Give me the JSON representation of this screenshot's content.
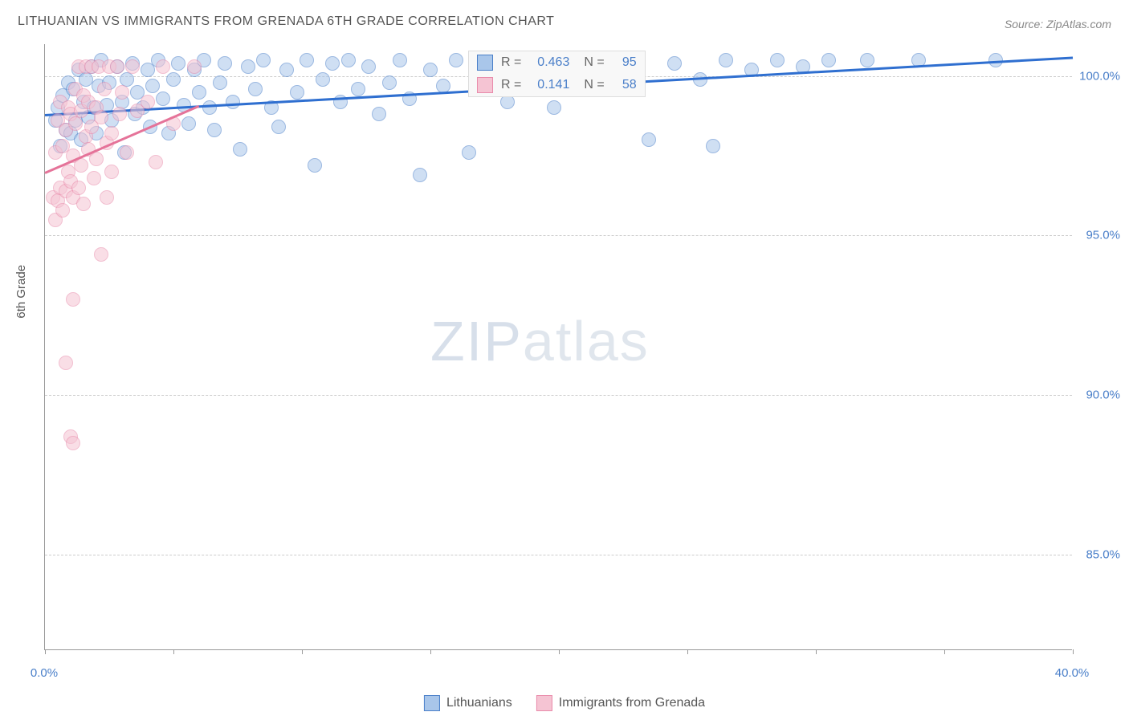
{
  "title": "LITHUANIAN VS IMMIGRANTS FROM GRENADA 6TH GRADE CORRELATION CHART",
  "source": "Source: ZipAtlas.com",
  "watermark": {
    "bold": "ZIP",
    "light": "atlas"
  },
  "ylabel": "6th Grade",
  "chart": {
    "type": "scatter",
    "background_color": "#ffffff",
    "grid_color": "#cccccc",
    "xlim": [
      0,
      40
    ],
    "ylim": [
      82,
      101
    ],
    "xticks": [
      0,
      5,
      10,
      15,
      20,
      25,
      30,
      35,
      40
    ],
    "xtick_labels": {
      "0": "0.0%",
      "40": "40.0%"
    },
    "yticks": [
      85,
      90,
      95,
      100
    ],
    "ytick_labels": [
      "85.0%",
      "90.0%",
      "95.0%",
      "100.0%"
    ],
    "marker_radius": 9,
    "marker_opacity": 0.55,
    "series": [
      {
        "name": "Lithuanians",
        "fill": "#a9c6ea",
        "stroke": "#4a7fc9",
        "trend_color": "#2f6fd0",
        "R": "0.463",
        "N": "95",
        "trend": {
          "x1": 0,
          "y1": 98.8,
          "x2": 40,
          "y2": 100.6
        },
        "points": [
          [
            0.4,
            98.6
          ],
          [
            0.5,
            99.0
          ],
          [
            0.6,
            97.8
          ],
          [
            0.7,
            99.4
          ],
          [
            0.8,
            98.3
          ],
          [
            0.9,
            99.8
          ],
          [
            1.0,
            98.2
          ],
          [
            1.1,
            99.6
          ],
          [
            1.2,
            98.6
          ],
          [
            1.3,
            100.2
          ],
          [
            1.4,
            98.0
          ],
          [
            1.5,
            99.2
          ],
          [
            1.6,
            99.9
          ],
          [
            1.7,
            98.7
          ],
          [
            1.8,
            100.3
          ],
          [
            1.9,
            99.0
          ],
          [
            2.0,
            98.2
          ],
          [
            2.1,
            99.7
          ],
          [
            2.2,
            100.5
          ],
          [
            2.4,
            99.1
          ],
          [
            2.5,
            99.8
          ],
          [
            2.6,
            98.6
          ],
          [
            2.8,
            100.3
          ],
          [
            3.0,
            99.2
          ],
          [
            3.1,
            97.6
          ],
          [
            3.2,
            99.9
          ],
          [
            3.4,
            100.4
          ],
          [
            3.5,
            98.8
          ],
          [
            3.6,
            99.5
          ],
          [
            3.8,
            99.0
          ],
          [
            4.0,
            100.2
          ],
          [
            4.1,
            98.4
          ],
          [
            4.2,
            99.7
          ],
          [
            4.4,
            100.5
          ],
          [
            4.6,
            99.3
          ],
          [
            4.8,
            98.2
          ],
          [
            5.0,
            99.9
          ],
          [
            5.2,
            100.4
          ],
          [
            5.4,
            99.1
          ],
          [
            5.6,
            98.5
          ],
          [
            5.8,
            100.2
          ],
          [
            6.0,
            99.5
          ],
          [
            6.2,
            100.5
          ],
          [
            6.4,
            99.0
          ],
          [
            6.6,
            98.3
          ],
          [
            6.8,
            99.8
          ],
          [
            7.0,
            100.4
          ],
          [
            7.3,
            99.2
          ],
          [
            7.6,
            97.7
          ],
          [
            7.9,
            100.3
          ],
          [
            8.2,
            99.6
          ],
          [
            8.5,
            100.5
          ],
          [
            8.8,
            99.0
          ],
          [
            9.1,
            98.4
          ],
          [
            9.4,
            100.2
          ],
          [
            9.8,
            99.5
          ],
          [
            10.2,
            100.5
          ],
          [
            10.5,
            97.2
          ],
          [
            10.8,
            99.9
          ],
          [
            11.2,
            100.4
          ],
          [
            11.5,
            99.2
          ],
          [
            11.8,
            100.5
          ],
          [
            12.2,
            99.6
          ],
          [
            12.6,
            100.3
          ],
          [
            13.0,
            98.8
          ],
          [
            13.4,
            99.8
          ],
          [
            13.8,
            100.5
          ],
          [
            14.2,
            99.3
          ],
          [
            14.6,
            96.9
          ],
          [
            15.0,
            100.2
          ],
          [
            15.5,
            99.7
          ],
          [
            16.0,
            100.5
          ],
          [
            16.5,
            97.6
          ],
          [
            17.0,
            99.9
          ],
          [
            17.5,
            100.4
          ],
          [
            18.0,
            99.2
          ],
          [
            18.5,
            100.5
          ],
          [
            19.2,
            100.3
          ],
          [
            19.8,
            99.0
          ],
          [
            20.5,
            100.5
          ],
          [
            21.2,
            99.8
          ],
          [
            22.0,
            100.2
          ],
          [
            22.8,
            100.5
          ],
          [
            23.5,
            98.0
          ],
          [
            24.5,
            100.4
          ],
          [
            25.5,
            99.9
          ],
          [
            26.0,
            97.8
          ],
          [
            26.5,
            100.5
          ],
          [
            27.5,
            100.2
          ],
          [
            28.5,
            100.5
          ],
          [
            29.5,
            100.3
          ],
          [
            30.5,
            100.5
          ],
          [
            32.0,
            100.5
          ],
          [
            34.0,
            100.5
          ],
          [
            37.0,
            100.5
          ]
        ]
      },
      {
        "name": "Immigrants from Grenada",
        "fill": "#f5c4d3",
        "stroke": "#e98bab",
        "trend_color": "#e57399",
        "R": "0.141",
        "N": "58",
        "trend": {
          "x1": 0,
          "y1": 97.0,
          "x2": 6.0,
          "y2": 99.1
        },
        "points": [
          [
            0.3,
            96.2
          ],
          [
            0.4,
            95.5
          ],
          [
            0.4,
            97.6
          ],
          [
            0.5,
            96.1
          ],
          [
            0.5,
            98.6
          ],
          [
            0.6,
            96.5
          ],
          [
            0.6,
            99.2
          ],
          [
            0.7,
            95.8
          ],
          [
            0.7,
            97.8
          ],
          [
            0.8,
            96.4
          ],
          [
            0.8,
            98.3
          ],
          [
            0.9,
            97.0
          ],
          [
            0.9,
            99.0
          ],
          [
            1.0,
            96.7
          ],
          [
            1.0,
            98.8
          ],
          [
            1.1,
            96.2
          ],
          [
            1.1,
            97.5
          ],
          [
            1.2,
            98.5
          ],
          [
            1.2,
            99.6
          ],
          [
            1.3,
            96.5
          ],
          [
            1.3,
            100.3
          ],
          [
            1.4,
            97.2
          ],
          [
            1.4,
            98.9
          ],
          [
            1.5,
            99.4
          ],
          [
            1.5,
            96.0
          ],
          [
            1.6,
            98.1
          ],
          [
            1.6,
            100.3
          ],
          [
            1.7,
            97.7
          ],
          [
            1.7,
            99.2
          ],
          [
            1.8,
            98.4
          ],
          [
            1.8,
            100.3
          ],
          [
            1.9,
            96.8
          ],
          [
            2.0,
            99.0
          ],
          [
            2.0,
            97.4
          ],
          [
            2.1,
            100.3
          ],
          [
            2.2,
            98.7
          ],
          [
            2.3,
            99.6
          ],
          [
            2.4,
            97.9
          ],
          [
            2.5,
            100.3
          ],
          [
            2.6,
            98.2
          ],
          [
            2.2,
            94.4
          ],
          [
            2.8,
            100.3
          ],
          [
            2.9,
            98.8
          ],
          [
            3.0,
            99.5
          ],
          [
            3.2,
            97.6
          ],
          [
            3.4,
            100.3
          ],
          [
            3.6,
            98.9
          ],
          [
            1.1,
            93.0
          ],
          [
            4.0,
            99.2
          ],
          [
            4.3,
            97.3
          ],
          [
            4.6,
            100.3
          ],
          [
            5.0,
            98.5
          ],
          [
            0.8,
            91.0
          ],
          [
            5.8,
            100.3
          ],
          [
            1.0,
            88.7
          ],
          [
            1.1,
            88.5
          ],
          [
            2.4,
            96.2
          ],
          [
            2.6,
            97.0
          ]
        ]
      }
    ]
  },
  "legend_stats": {
    "label_R": "R =",
    "label_N": "N =",
    "text_color": "#666666",
    "value_color": "#4a7fc9"
  }
}
